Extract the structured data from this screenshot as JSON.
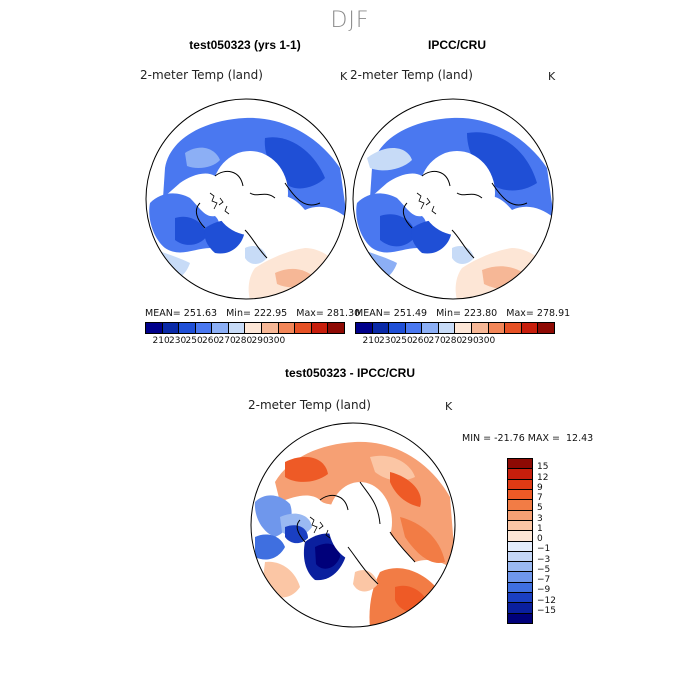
{
  "season": "DJF",
  "panels": [
    {
      "title": "test050323 (yrs 1-1)",
      "variable": "2-meter Temp (land)",
      "unit": "K",
      "mean_label": "MEAN=",
      "mean": "251.63",
      "min_label": "Min=",
      "min": "222.95",
      "max_label": "Max=",
      "max": "281.30"
    },
    {
      "title": "IPCC/CRU",
      "variable": "2-meter Temp (land)",
      "unit": "K",
      "mean_label": "MEAN=",
      "mean": "251.49",
      "min_label": "Min=",
      "min": "223.80",
      "max_label": "Max=",
      "max": "278.91"
    }
  ],
  "abs_colorbar": {
    "ticks": [
      "210",
      "230",
      "250",
      "260",
      "270",
      "280",
      "290",
      "300"
    ],
    "colors": [
      "#00008b",
      "#0a2aa8",
      "#1f4fd6",
      "#4a78f0",
      "#8caff5",
      "#c7dbf7",
      "#fde6d6",
      "#f6b796",
      "#f28658",
      "#e65125",
      "#c71e0c",
      "#8e0a04"
    ]
  },
  "diff_panel": {
    "title": "test050323 - IPCC/CRU",
    "variable": "2-meter Temp (land)",
    "unit": "K",
    "min_label": "MIN =",
    "min": "-21.76",
    "max_label": "MAX =",
    "max": "12.43",
    "colorbar": {
      "labels": [
        "15",
        "12",
        "9",
        "7",
        "5",
        "3",
        "1",
        "0",
        "−1",
        "−3",
        "−5",
        "−7",
        "−9",
        "−12",
        "−15"
      ],
      "colors": [
        "#8e0a04",
        "#c71e0c",
        "#e03a14",
        "#ee5a26",
        "#f27c45",
        "#f6a074",
        "#fbc6a5",
        "#fde6d6",
        "#e3ecfb",
        "#c4d6f6",
        "#9ab9f2",
        "#6f97ec",
        "#3f6fe0",
        "#1a3fc2",
        "#0a1f9e",
        "#00007a"
      ]
    }
  }
}
